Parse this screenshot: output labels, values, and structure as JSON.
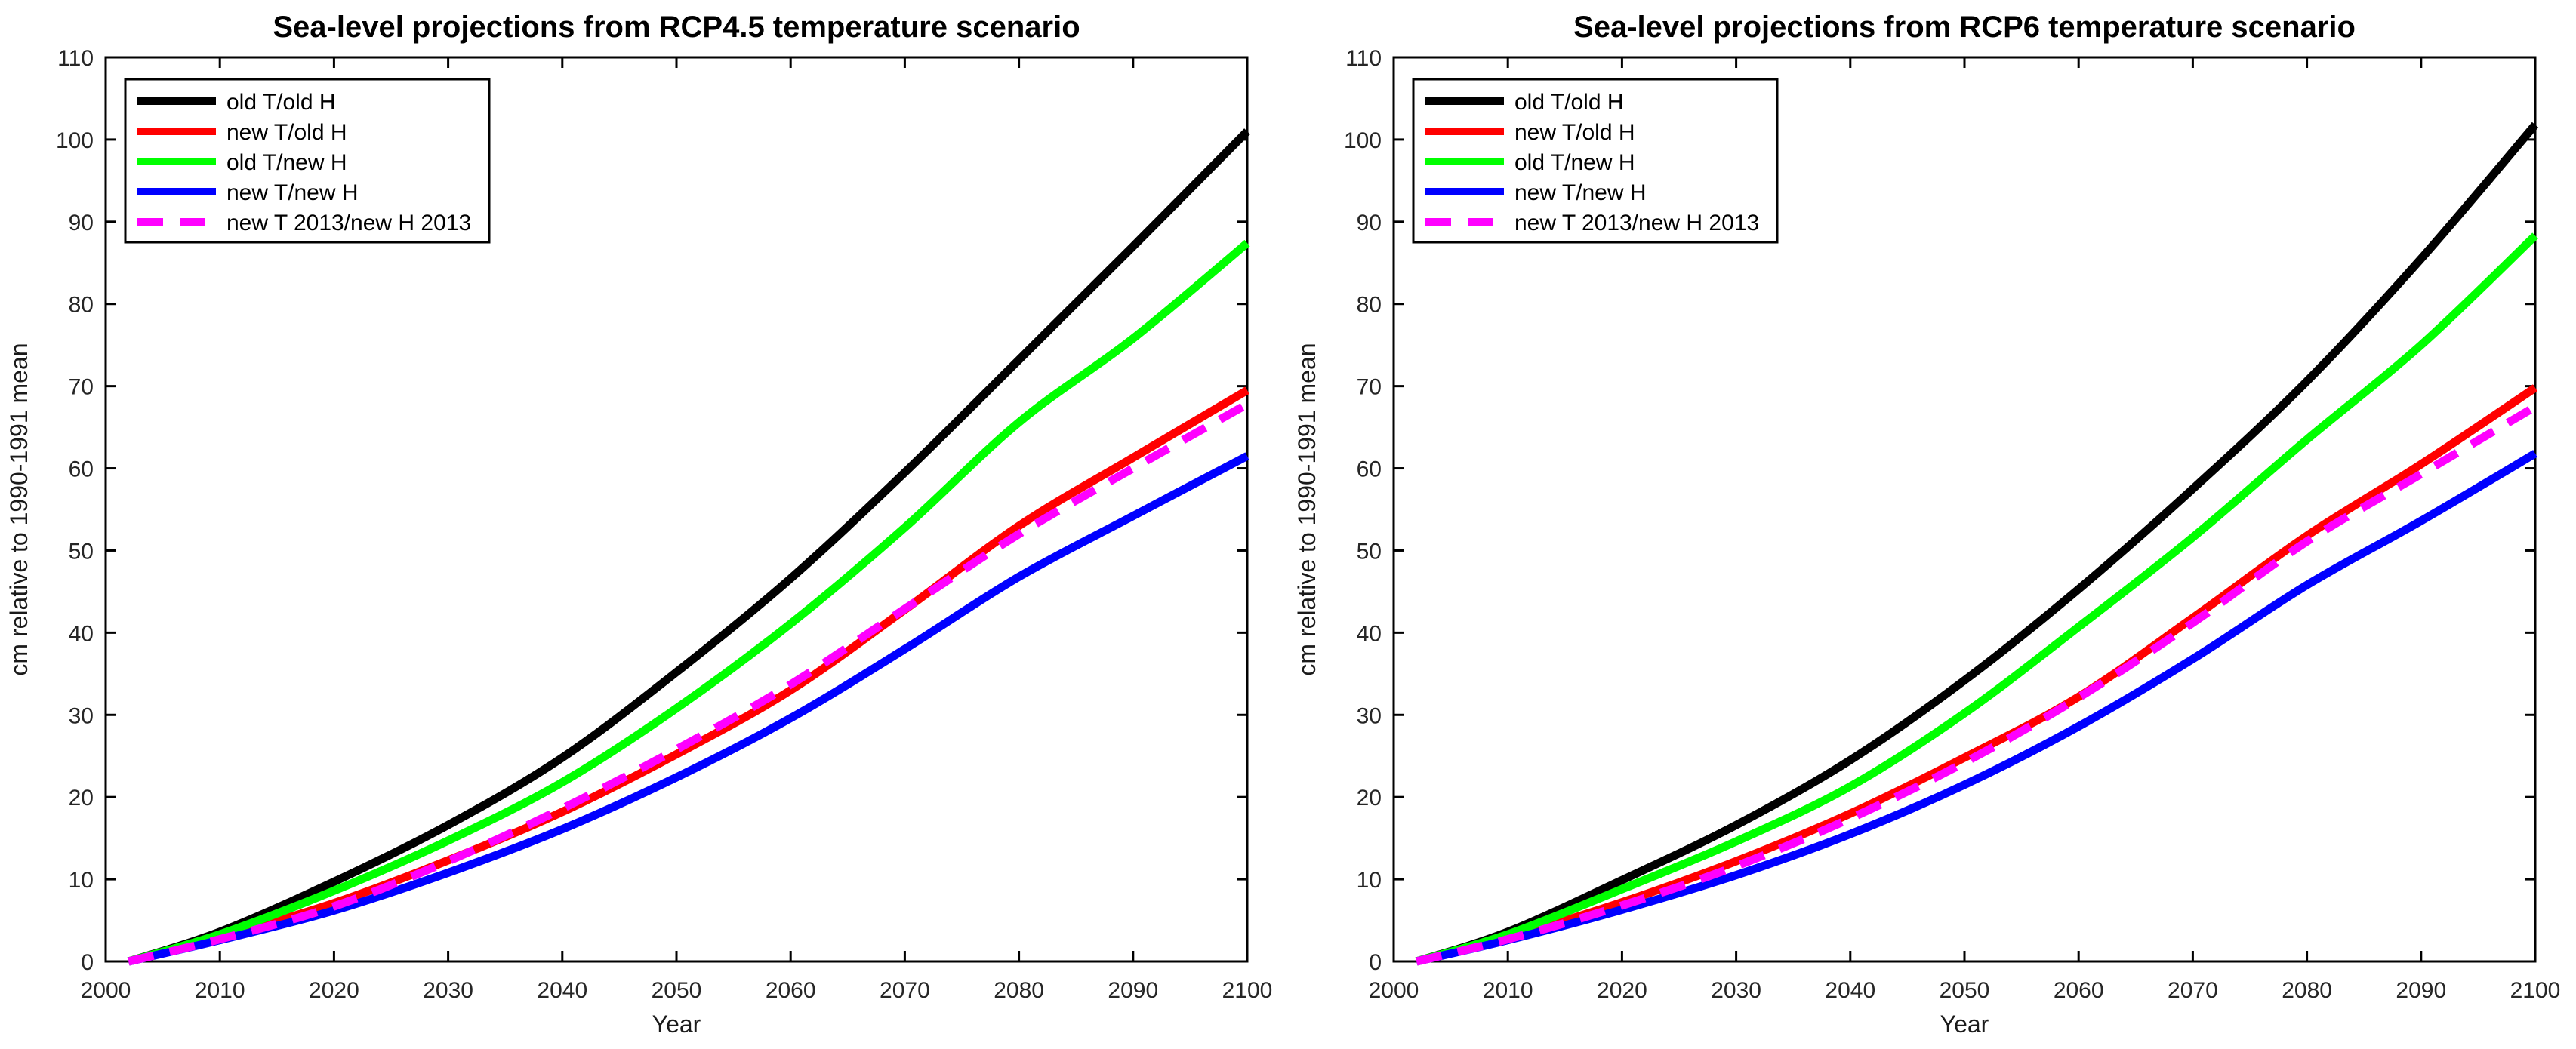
{
  "figure": {
    "background": "#ffffff",
    "axis_color": "#000000",
    "tick_label_color": "#262626"
  },
  "chart_data": [
    {
      "type": "line",
      "title": "Sea-level projections from RCP4.5 temperature scenario",
      "xlabel": "Year",
      "ylabel": "cm relative to 1990-1991 mean",
      "xlim": [
        2000,
        2100
      ],
      "ylim": [
        0,
        110
      ],
      "xticks": [
        2000,
        2010,
        2020,
        2030,
        2040,
        2050,
        2060,
        2070,
        2080,
        2090,
        2100
      ],
      "yticks": [
        0,
        10,
        20,
        30,
        40,
        50,
        60,
        70,
        80,
        90,
        100,
        110
      ],
      "grid": false,
      "legend_position": "top-left",
      "x": [
        2002,
        2010,
        2020,
        2030,
        2040,
        2050,
        2060,
        2070,
        2080,
        2090,
        2100
      ],
      "series": [
        {
          "name": "old T/old H",
          "color": "#000000",
          "line_style": "solid",
          "values": [
            0,
            3.6,
            9.7,
            16.6,
            24.8,
            35.2,
            46.6,
            59.5,
            73.2,
            87.0,
            101.0
          ]
        },
        {
          "name": "new T/old H",
          "color": "#ff0000",
          "line_style": "solid",
          "values": [
            0,
            2.9,
            7.1,
            12.3,
            18.2,
            25.2,
            33.0,
            42.8,
            53.0,
            61.3,
            69.5
          ]
        },
        {
          "name": "old T/new H",
          "color": "#00ff00",
          "line_style": "solid",
          "values": [
            0,
            3.3,
            8.6,
            14.7,
            21.8,
            30.8,
            41.1,
            52.8,
            65.6,
            75.8,
            87.4
          ]
        },
        {
          "name": "new T/new H",
          "color": "#0000ff",
          "line_style": "solid",
          "values": [
            0,
            2.6,
            6.2,
            10.8,
            16.1,
            22.4,
            29.6,
            38.0,
            46.8,
            54.2,
            61.5
          ]
        },
        {
          "name": "new T 2013/new H 2013",
          "color": "#ff00ff",
          "line_style": "dashed",
          "values": [
            0,
            2.7,
            6.7,
            12.2,
            18.6,
            25.8,
            33.7,
            42.9,
            52.0,
            60.0,
            67.8
          ]
        }
      ]
    },
    {
      "type": "line",
      "title": "Sea-level projections from RCP6 temperature scenario",
      "xlabel": "Year",
      "ylabel": "cm relative to 1990-1991 mean",
      "xlim": [
        2000,
        2100
      ],
      "ylim": [
        0,
        110
      ],
      "xticks": [
        2000,
        2010,
        2020,
        2030,
        2040,
        2050,
        2060,
        2070,
        2080,
        2090,
        2100
      ],
      "yticks": [
        0,
        10,
        20,
        30,
        40,
        50,
        60,
        70,
        80,
        90,
        100,
        110
      ],
      "grid": false,
      "legend_position": "top-left",
      "x": [
        2002,
        2010,
        2020,
        2030,
        2040,
        2050,
        2060,
        2070,
        2080,
        2090,
        2100
      ],
      "series": [
        {
          "name": "old T/old H",
          "color": "#000000",
          "line_style": "solid",
          "values": [
            0,
            3.6,
            9.9,
            16.6,
            24.5,
            34.2,
            45.3,
            57.5,
            70.6,
            85.5,
            101.8
          ]
        },
        {
          "name": "new T/old H",
          "color": "#ff0000",
          "line_style": "solid",
          "values": [
            0,
            2.9,
            7.2,
            12.2,
            18.0,
            24.8,
            32.2,
            41.8,
            51.8,
            60.5,
            69.8
          ]
        },
        {
          "name": "old T/new H",
          "color": "#00ff00",
          "line_style": "solid",
          "values": [
            0,
            3.3,
            8.8,
            14.6,
            21.3,
            30.2,
            40.7,
            51.6,
            63.5,
            75.0,
            88.3
          ]
        },
        {
          "name": "new T/new H",
          "color": "#0000ff",
          "line_style": "solid",
          "values": [
            0,
            2.6,
            6.3,
            10.5,
            15.5,
            21.5,
            28.6,
            36.8,
            45.8,
            53.6,
            61.8
          ]
        },
        {
          "name": "new T 2013/new H 2013",
          "color": "#ff00ff",
          "line_style": "dashed",
          "values": [
            0,
            2.7,
            6.8,
            11.6,
            17.4,
            24.2,
            32.1,
            41.2,
            51.1,
            59.3,
            67.5
          ]
        }
      ]
    }
  ]
}
